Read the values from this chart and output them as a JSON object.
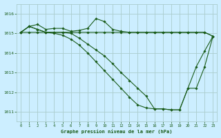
{
  "title": "Graphe pression niveau de la mer (hPa)",
  "bg_color": "#cceeff",
  "grid_color": "#aacccc",
  "line_color": "#1a5c1a",
  "marker_color": "#1a5c1a",
  "xlim": [
    -0.5,
    23.5
  ],
  "ylim": [
    1010.5,
    1016.5
  ],
  "yticks": [
    1011,
    1012,
    1013,
    1014,
    1015,
    1016
  ],
  "xticks": [
    0,
    1,
    2,
    3,
    4,
    5,
    6,
    7,
    8,
    9,
    10,
    11,
    12,
    13,
    14,
    15,
    16,
    17,
    18,
    19,
    20,
    21,
    22,
    23
  ],
  "series": [
    {
      "x": [
        0,
        1,
        2,
        3,
        4,
        5,
        6,
        7,
        8,
        9,
        10,
        11,
        12,
        13,
        14,
        15,
        16,
        17,
        18,
        19,
        20,
        21,
        22,
        23
      ],
      "y": [
        1015.05,
        1015.05,
        1015.05,
        1015.05,
        1015.05,
        1015.05,
        1015.05,
        1015.05,
        1015.05,
        1015.05,
        1015.05,
        1015.05,
        1015.05,
        1015.05,
        1015.05,
        1015.05,
        1015.05,
        1015.05,
        1015.05,
        1015.05,
        1015.05,
        1015.05,
        1015.05,
        1014.85
      ]
    },
    {
      "x": [
        0,
        1,
        2,
        3,
        4,
        5,
        6,
        7,
        8,
        9,
        10,
        11,
        12,
        13,
        14,
        15,
        16,
        17,
        18,
        19,
        20,
        21,
        22,
        23
      ],
      "y": [
        1015.05,
        1015.35,
        1015.45,
        1015.2,
        1015.25,
        1015.25,
        1015.1,
        1015.15,
        1015.25,
        1015.75,
        1015.6,
        1015.2,
        1015.1,
        1015.05,
        1015.05,
        1015.05,
        1015.05,
        1015.05,
        1015.05,
        1015.05,
        1015.05,
        1015.05,
        1015.05,
        1014.85
      ]
    },
    {
      "x": [
        0,
        1,
        2,
        3,
        4,
        5,
        6,
        7,
        8,
        9,
        10,
        11,
        12,
        13,
        14,
        15,
        16,
        17,
        18,
        19,
        20,
        21,
        22,
        23
      ],
      "y": [
        1015.05,
        1015.35,
        1015.2,
        1015.05,
        1015.05,
        1015.05,
        1015.0,
        1014.75,
        1014.45,
        1014.15,
        1013.85,
        1013.45,
        1013.0,
        1012.6,
        1012.2,
        1011.8,
        1011.15,
        1011.15,
        1011.1,
        1011.1,
        1012.2,
        1013.3,
        1014.1,
        1014.85
      ]
    },
    {
      "x": [
        0,
        1,
        2,
        3,
        4,
        5,
        6,
        7,
        8,
        9,
        10,
        11,
        12,
        13,
        14,
        15,
        16,
        17,
        18,
        19,
        20,
        21,
        22,
        23
      ],
      "y": [
        1015.05,
        1015.35,
        1015.2,
        1015.05,
        1015.0,
        1014.9,
        1014.7,
        1014.4,
        1014.0,
        1013.55,
        1013.1,
        1012.65,
        1012.2,
        1011.75,
        1011.35,
        1011.2,
        1011.15,
        1011.15,
        1011.1,
        1011.1,
        1012.2,
        1012.2,
        1013.3,
        1014.85
      ]
    }
  ]
}
